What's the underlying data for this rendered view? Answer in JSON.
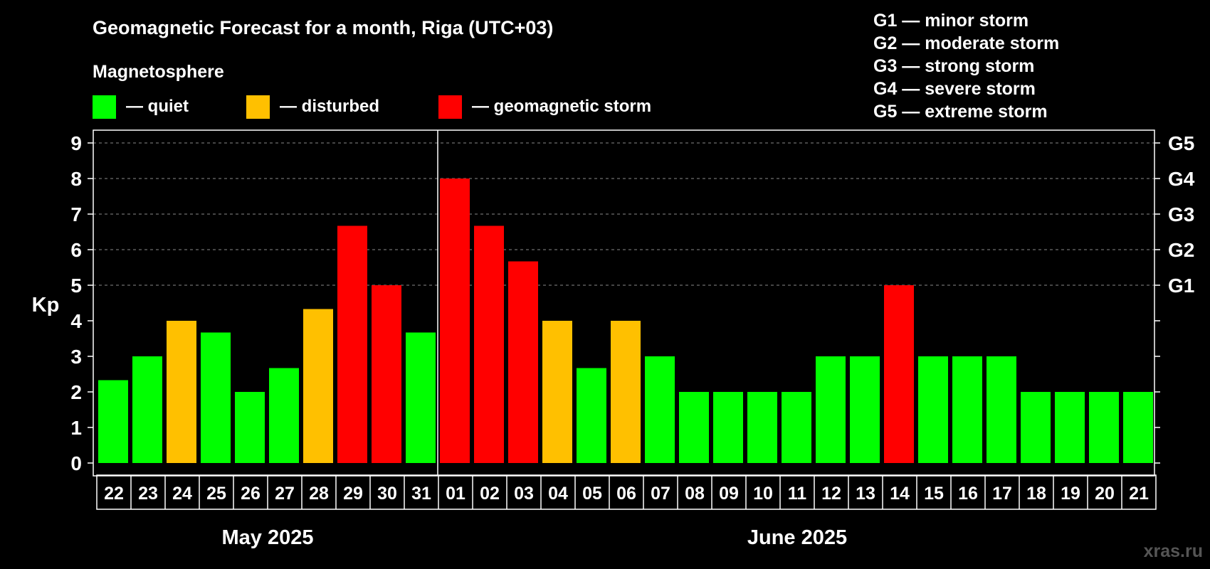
{
  "title": "Geomagnetic Forecast for a month, Riga (UTC+03)",
  "legend": {
    "heading": "Magnetosphere",
    "items": [
      {
        "label": "— quiet",
        "color": "#00ff00"
      },
      {
        "label": "— disturbed",
        "color": "#ffc000"
      },
      {
        "label": "— geomagnetic storm",
        "color": "#ff0000"
      }
    ]
  },
  "storm_scale": [
    "G1 — minor storm",
    "G2 — moderate storm",
    "G3 — strong storm",
    "G4 — severe storm",
    "G5 — extreme storm"
  ],
  "watermark": "xras.ru",
  "chart_data": {
    "type": "bar",
    "ylabel": "Kp",
    "ylim": [
      0,
      9
    ],
    "yticks": [
      "0",
      "1",
      "2",
      "3",
      "4",
      "5",
      "6",
      "7",
      "8",
      "9"
    ],
    "right_ticks": [
      {
        "kp": 5,
        "label": "G1"
      },
      {
        "kp": 6,
        "label": "G2"
      },
      {
        "kp": 7,
        "label": "G3"
      },
      {
        "kp": 8,
        "label": "G4"
      },
      {
        "kp": 9,
        "label": "G5"
      }
    ],
    "grid": "dashed horizontal at Kp 5-9",
    "months": [
      {
        "label": "May 2025",
        "days": 10
      },
      {
        "label": "June 2025",
        "days": 21
      }
    ],
    "colors": {
      "quiet": "#00ff00",
      "disturbed": "#ffc000",
      "storm": "#ff0000"
    },
    "categories": [
      "22",
      "23",
      "24",
      "25",
      "26",
      "27",
      "28",
      "29",
      "30",
      "31",
      "01",
      "02",
      "03",
      "04",
      "05",
      "06",
      "07",
      "08",
      "09",
      "10",
      "11",
      "12",
      "13",
      "14",
      "15",
      "16",
      "17",
      "18",
      "19",
      "20",
      "21"
    ],
    "values": [
      2.33,
      3,
      4,
      3.67,
      2,
      2.67,
      4.33,
      6.67,
      5,
      3.67,
      8,
      6.67,
      5.67,
      4,
      2.67,
      4,
      3,
      2,
      2,
      2,
      2,
      3,
      3,
      5,
      3,
      3,
      3,
      2,
      2,
      2,
      2
    ],
    "levels": [
      "quiet",
      "quiet",
      "disturbed",
      "quiet",
      "quiet",
      "quiet",
      "disturbed",
      "storm",
      "storm",
      "quiet",
      "storm",
      "storm",
      "storm",
      "disturbed",
      "quiet",
      "disturbed",
      "quiet",
      "quiet",
      "quiet",
      "quiet",
      "quiet",
      "quiet",
      "quiet",
      "storm",
      "quiet",
      "quiet",
      "quiet",
      "quiet",
      "quiet",
      "quiet",
      "quiet"
    ]
  }
}
